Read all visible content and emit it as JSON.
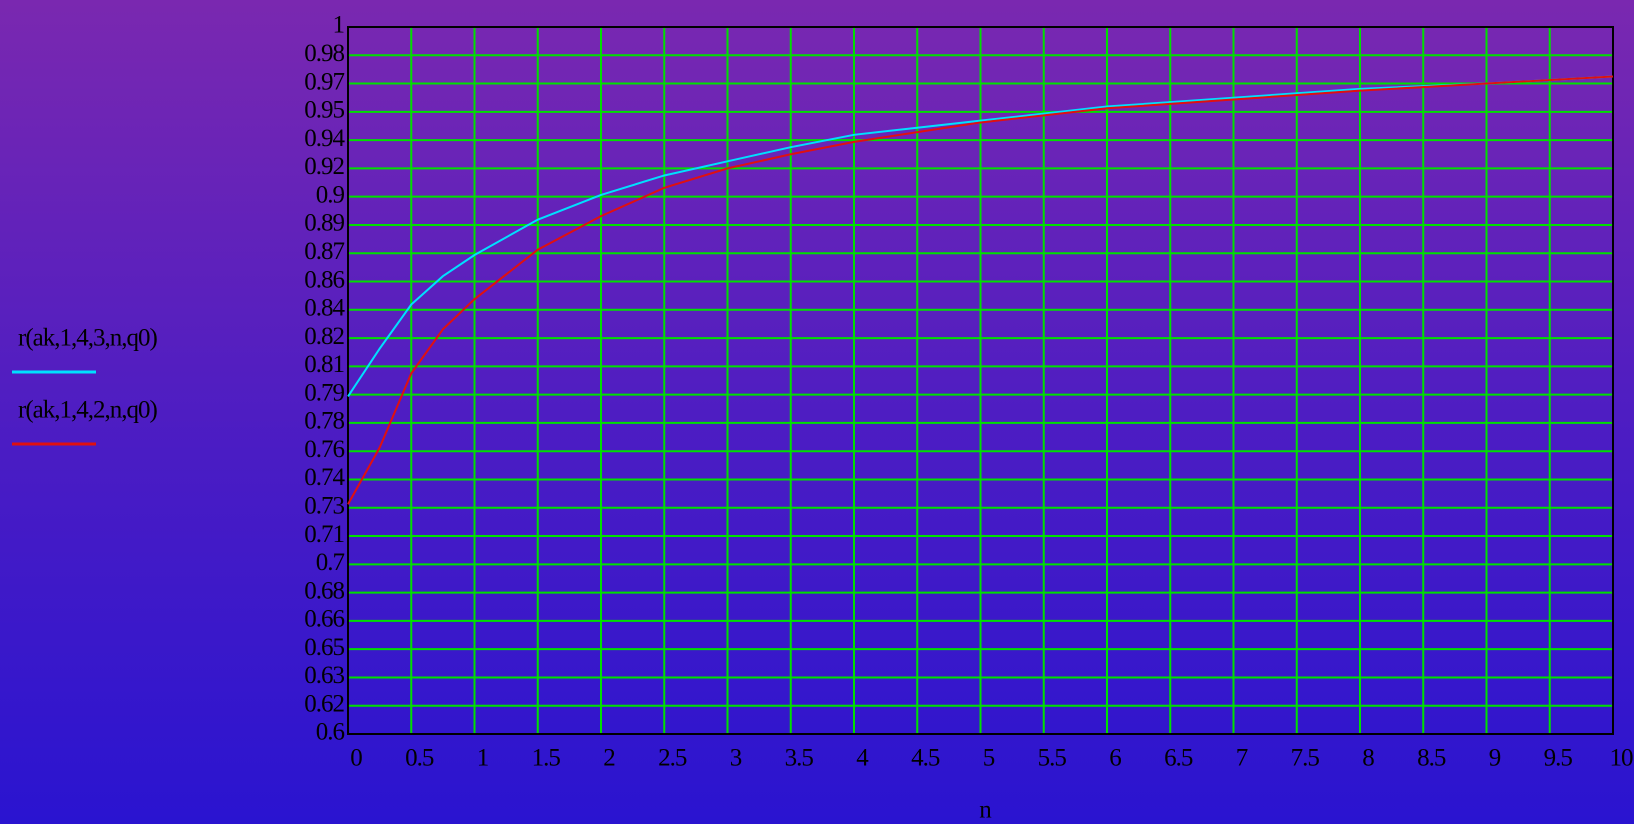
{
  "chart_data": {
    "type": "line",
    "x_label": "n",
    "x": [
      0,
      0.25,
      0.5,
      0.75,
      1,
      1.5,
      2,
      2.5,
      3,
      3.5,
      4,
      5,
      6,
      7,
      8,
      9,
      10
    ],
    "series": [
      {
        "name": "r(ak,1,4,3,n,q0)",
        "color": "#00e0ff",
        "values": [
          0.791,
          0.818,
          0.843,
          0.859,
          0.871,
          0.891,
          0.905,
          0.916,
          0.924,
          0.932,
          0.939,
          0.947,
          0.955,
          0.96,
          0.965,
          0.968,
          0.972
        ]
      },
      {
        "name": "r(ak,1,4,2,n,q0)",
        "color": "#e01010",
        "values": [
          0.73,
          0.762,
          0.804,
          0.829,
          0.846,
          0.874,
          0.893,
          0.909,
          0.92,
          0.928,
          0.935,
          0.946,
          0.954,
          0.959,
          0.964,
          0.968,
          0.972
        ]
      }
    ],
    "xlim": [
      0,
      10
    ],
    "xticks": [
      0,
      0.5,
      1,
      1.5,
      2,
      2.5,
      3,
      3.5,
      4,
      4.5,
      5,
      5.5,
      6,
      6.5,
      7,
      7.5,
      8,
      8.5,
      9,
      9.5,
      10
    ],
    "ylim": [
      0.6,
      1
    ],
    "yticks": [
      0.6,
      {
        "value": 0.616,
        "label": "0.62"
      },
      {
        "value": 0.632,
        "label": "0.63"
      },
      {
        "value": 0.648,
        "label": "0.65"
      },
      {
        "value": 0.664,
        "label": "0.66"
      },
      0.68,
      {
        "value": 0.696,
        "label": "0.7"
      },
      {
        "value": 0.712,
        "label": "0.71"
      },
      {
        "value": 0.728,
        "label": "0.73"
      },
      {
        "value": 0.744,
        "label": "0.74"
      },
      0.76,
      {
        "value": 0.776,
        "label": "0.78"
      },
      {
        "value": 0.792,
        "label": "0.79"
      },
      {
        "value": 0.808,
        "label": "0.81"
      },
      {
        "value": 0.824,
        "label": "0.82"
      },
      0.84,
      {
        "value": 0.856,
        "label": "0.86"
      },
      {
        "value": 0.872,
        "label": "0.87"
      },
      {
        "value": 0.888,
        "label": "0.89"
      },
      {
        "value": 0.904,
        "label": "0.9"
      },
      0.92,
      {
        "value": 0.936,
        "label": "0.94"
      },
      {
        "value": 0.952,
        "label": "0.95"
      },
      {
        "value": 0.968,
        "label": "0.97"
      },
      {
        "value": 0.984,
        "label": "0.98"
      },
      1
    ],
    "grid": true,
    "grid_color": "#00e000",
    "legend": "left"
  }
}
